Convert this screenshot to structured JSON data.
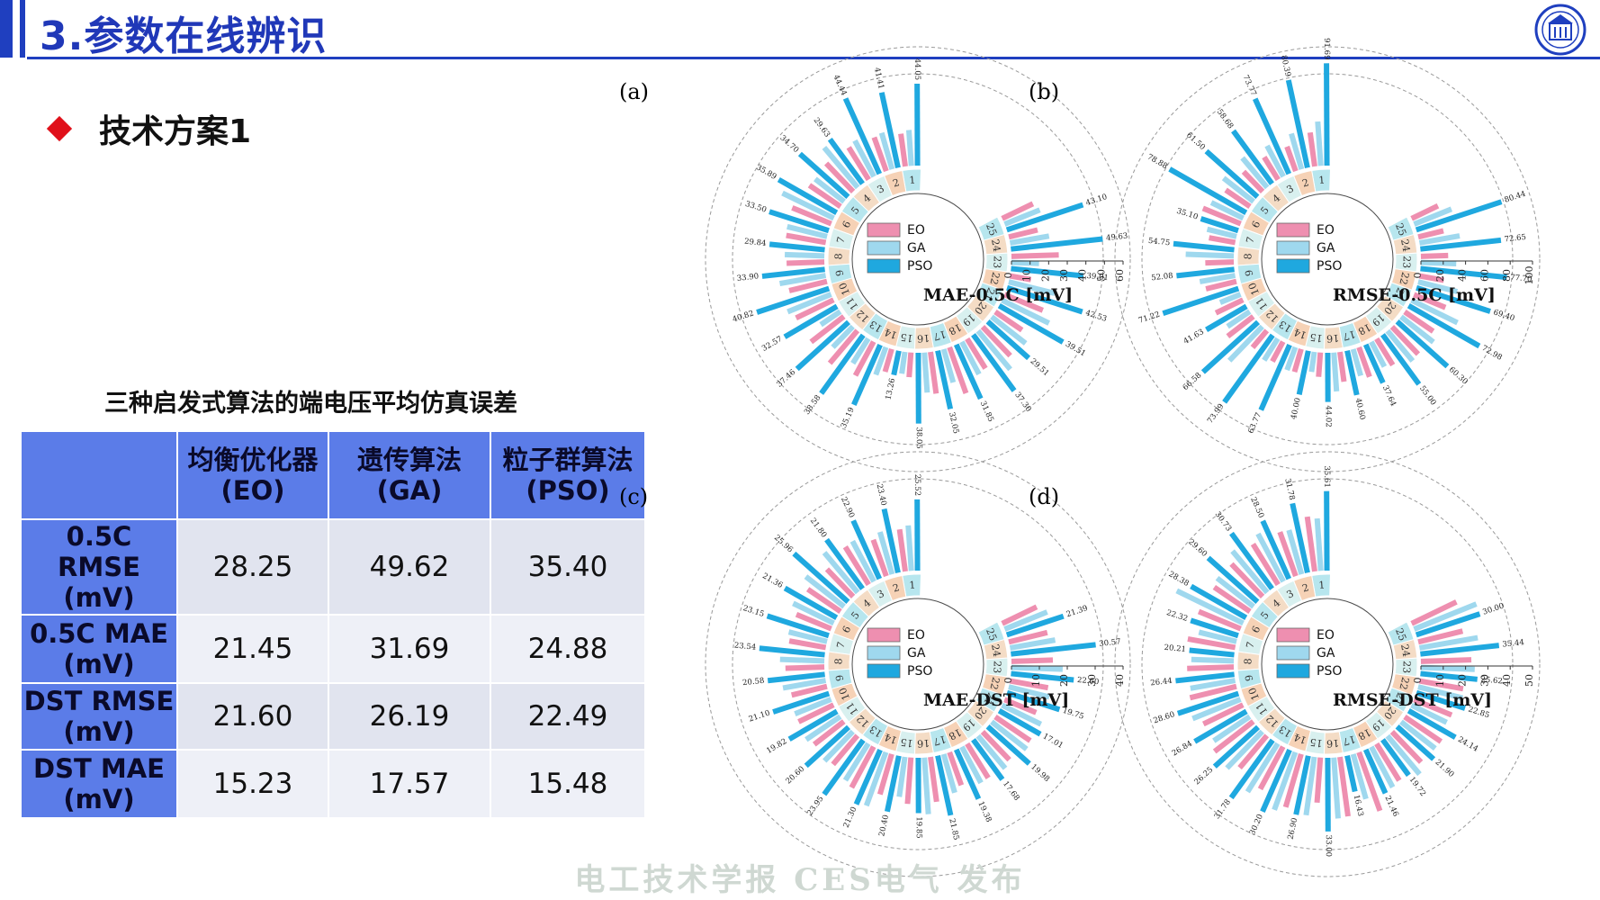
{
  "header": {
    "title": "3.参数在线辨识"
  },
  "bullet": {
    "text": "技术方案1"
  },
  "table": {
    "title": "三种启发式算法的端电压平均仿真误差",
    "headers": [
      {
        "line1": "均衡优化器",
        "line2": "(EO)"
      },
      {
        "line1": "遗传算法",
        "line2": "(GA)"
      },
      {
        "line1": "粒子群算法",
        "line2": "(PSO)"
      }
    ],
    "rows": [
      {
        "label": [
          "0.5C",
          "RMSE",
          "(mV)"
        ],
        "values": [
          "28.25",
          "49.62",
          "35.40"
        ]
      },
      {
        "label": [
          "0.5C MAE",
          "(mV)"
        ],
        "values": [
          "21.45",
          "31.69",
          "24.88"
        ]
      },
      {
        "label": [
          "DST RMSE",
          "(mV)"
        ],
        "values": [
          "21.60",
          "26.19",
          "22.49"
        ]
      },
      {
        "label": [
          "DST MAE",
          "(mV)"
        ],
        "values": [
          "15.23",
          "17.57",
          "15.48"
        ]
      }
    ]
  },
  "footer": {
    "text": "电工技术学报 CES电气 发布"
  },
  "colors": {
    "EO": "#ee8fb0",
    "GA": "#9fd8ee",
    "PSO": "#1fa8df",
    "header": "#1f3fbf",
    "table_head": "#5b7ce8"
  },
  "chart_data": [
    {
      "type": "bar",
      "subtype": "radial-bar",
      "panel": "(a)",
      "title": "MAE-0.5C [mV]",
      "legend": [
        "EO",
        "GA",
        "PSO"
      ],
      "categories": [
        "1",
        "2",
        "3",
        "4",
        "5",
        "6",
        "7",
        "8",
        "9",
        "10",
        "11",
        "12",
        "13",
        "14",
        "15",
        "16",
        "17",
        "18",
        "19",
        "20",
        "21",
        "22",
        "23",
        "24",
        "25"
      ],
      "axis_ticks": [
        "0",
        "10",
        "20",
        "30",
        "40",
        "50",
        "60"
      ],
      "ylim": [
        0,
        60
      ],
      "series": [
        {
          "name": "EO",
          "values": [
            17.74,
            19.29,
            20.34,
            20.97,
            20.25,
            22.7,
            21.6,
            20.3,
            20.9,
            22.4,
            22.3,
            22.97,
            20.67,
            12.7,
            13.26,
            22.6,
            26.25,
            18.7,
            21.5,
            17.39,
            22.26,
            11.46,
            25.47,
            15.91,
            18.34
          ]
        },
        {
          "name": "GA",
          "values": [
            19.29,
            20.34,
            21.87,
            28.06,
            19.75,
            30.7,
            22.1,
            21.3,
            25.1,
            25.19,
            12.64,
            15.49,
            15.66,
            15.79,
            11.83,
            21.54,
            18.62,
            19.69,
            26.94,
            23.18,
            28.11,
            25.48,
            14.86,
            21.28,
            20.38
          ]
        },
        {
          "name": "PSO",
          "values": [
            44.05,
            41.41,
            44.44,
            29.63,
            34.7,
            35.89,
            33.5,
            29.84,
            33.9,
            40.82,
            32.57,
            37.46,
            38.58,
            35.19,
            13.26,
            38.05,
            32.05,
            31.85,
            37.3,
            29.51,
            39.51,
            42.53,
            39.01,
            49.63,
            43.1
          ]
        }
      ]
    },
    {
      "type": "bar",
      "subtype": "radial-bar",
      "panel": "(b)",
      "title": "RMSE-0.5C [mV]",
      "legend": [
        "EO",
        "GA",
        "PSO"
      ],
      "categories": [
        "1",
        "2",
        "3",
        "4",
        "5",
        "6",
        "7",
        "8",
        "9",
        "10",
        "11",
        "12",
        "13",
        "14",
        "15",
        "16",
        "17",
        "18",
        "19",
        "20",
        "21",
        "22",
        "23",
        "24",
        "25"
      ],
      "axis_ticks": [
        "0",
        "20",
        "40",
        "60",
        "80",
        "100"
      ],
      "ylim": [
        0,
        100
      ],
      "series": [
        {
          "name": "EO",
          "values": [
            30.68,
            23.29,
            23.67,
            24.69,
            26.28,
            36.55,
            23.84,
            25.54,
            28.12,
            27.03,
            28.99,
            19.75,
            20.11,
            21.27,
            21.82,
            26.88,
            28.11,
            27.64,
            33.8,
            30.88,
            30.48,
            22.18,
            24.45,
            23.23,
            26.2
          ]
        },
        {
          "name": "GA",
          "values": [
            39.77,
            33.21,
            31.22,
            34.58,
            34.14,
            31.81,
            27.07,
            43.12,
            32.17,
            19.7,
            24.0,
            42.44,
            22.96,
            21.78,
            18.1,
            34.85,
            24.71,
            25.14,
            35.09,
            36.76,
            45.86,
            36.07,
            31.71,
            36.53,
            36.07
          ]
        },
        {
          "name": "PSO",
          "values": [
            91.69,
            80.39,
            73.77,
            58.68,
            61.5,
            78.88,
            35.1,
            54.75,
            52.08,
            71.22,
            41.63,
            66.58,
            73.99,
            63.77,
            40.0,
            44.02,
            40.6,
            37.64,
            55.0,
            60.3,
            72.98,
            69.4,
            77.7,
            72.65,
            80.44
          ]
        }
      ]
    },
    {
      "type": "bar",
      "subtype": "radial-bar",
      "panel": "(c)",
      "title": "MAE-DST [mV]",
      "legend": [
        "EO",
        "GA",
        "PSO"
      ],
      "categories": [
        "1",
        "2",
        "3",
        "4",
        "5",
        "6",
        "7",
        "8",
        "9",
        "10",
        "11",
        "12",
        "13",
        "14",
        "15",
        "16",
        "17",
        "18",
        "19",
        "20",
        "21",
        "22",
        "23",
        "24",
        "25"
      ],
      "axis_ticks": [
        "0",
        "10",
        "20",
        "30",
        "40"
      ],
      "ylim": [
        0,
        40
      ],
      "series": [
        {
          "name": "EO",
          "values": [
            15.22,
            13.82,
            15.91,
            13.61,
            14.2,
            13.51,
            13.29,
            13.95,
            13.05,
            13.93,
            13.44,
            13.52,
            16.65,
            15.04,
            16.65,
            16.22,
            12.53,
            14.39,
            13.85,
            15.18,
            12.24,
            13.86,
            14.86,
            14.21,
            13.72
          ]
        },
        {
          "name": "GA",
          "values": [
            16.3,
            15.77,
            16.38,
            18.62,
            17.44,
            16.2,
            14.14,
            15.9,
            15.56,
            13.98,
            14.77,
            14.62,
            15.5,
            20.41,
            14.44,
            20.33,
            14.39,
            14.61,
            15.17,
            15.9,
            15.52,
            14.98,
            18.38,
            16.42,
            16.42
          ]
        },
        {
          "name": "PSO",
          "values": [
            25.52,
            23.4,
            22.9,
            21.8,
            25.96,
            21.36,
            23.15,
            23.54,
            20.58,
            21.1,
            19.82,
            20.6,
            23.95,
            21.3,
            20.4,
            19.85,
            21.85,
            19.38,
            17.68,
            19.98,
            17.01,
            19.75,
            22.6,
            30.57,
            21.39
          ]
        }
      ]
    },
    {
      "type": "bar",
      "subtype": "radial-bar",
      "panel": "(d)",
      "title": "RMSE-DST [mV]",
      "legend": [
        "EO",
        "GA",
        "PSO"
      ],
      "categories": [
        "1",
        "2",
        "3",
        "4",
        "5",
        "6",
        "7",
        "8",
        "9",
        "10",
        "11",
        "12",
        "13",
        "14",
        "15",
        "16",
        "17",
        "18",
        "19",
        "20",
        "21",
        "22",
        "23",
        "24",
        "25"
      ],
      "axis_ticks": [
        "0",
        "10",
        "20",
        "30",
        "40",
        "50"
      ],
      "ylim": [
        0,
        50
      ],
      "series": [
        {
          "name": "EO",
          "values": [
            24.74,
            20.97,
            21.35,
            20.2,
            19.37,
            20.33,
            21.6,
            20.91,
            21.41,
            19.71,
            21.97,
            18.85,
            21.54,
            24.76,
            20.25,
            26.85,
            27.84,
            19.3,
            18.79,
            19.7,
            18.24,
            19.9,
            22.62,
            20.48,
            22.27
          ]
        },
        {
          "name": "GA",
          "values": [
            23.53,
            20.57,
            24.23,
            24.2,
            20.73,
            33.11,
            17.37,
            19.04,
            20.36,
            23.16,
            19.44,
            22.78,
            25.49,
            27.5,
            26.37,
            27.33,
            20.85,
            20.47,
            22.37,
            19.38,
            17.56,
            20.53,
            24.15,
            26.49,
            30.07
          ]
        },
        {
          "name": "PSO",
          "values": [
            35.61,
            31.78,
            28.5,
            30.73,
            29.6,
            28.38,
            22.32,
            20.21,
            26.44,
            28.6,
            26.84,
            26.25,
            31.78,
            30.2,
            26.9,
            33.0,
            16.43,
            21.46,
            19.72,
            21.9,
            24.14,
            22.85,
            25.62,
            35.44,
            30.0
          ]
        }
      ]
    }
  ]
}
